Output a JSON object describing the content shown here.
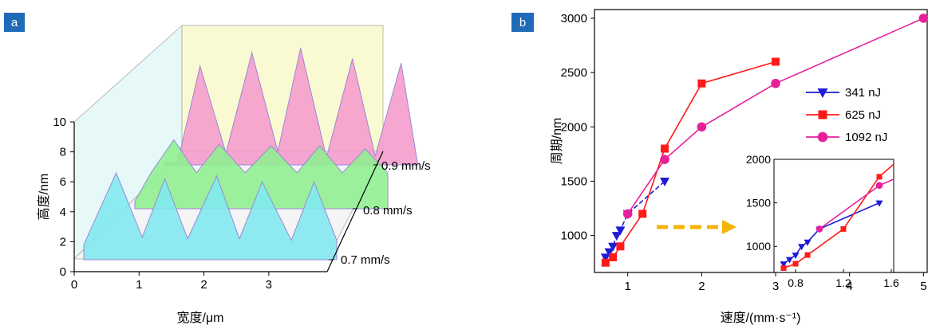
{
  "chart_data": [
    {
      "panel": "a",
      "type": "area",
      "xlabel": "宽度/μm",
      "ylabel": "高度/nm",
      "x_ticks": [
        "0",
        "1",
        "2",
        "3"
      ],
      "y_ticks": [
        "0",
        "2",
        "4",
        "6",
        "8",
        "10"
      ],
      "xlim": [
        0,
        3.9
      ],
      "ylim": [
        0,
        10
      ],
      "series": [
        {
          "name": "0.7 mm/s",
          "color": "#7fe8ef",
          "x": [
            0,
            0.5,
            0.9,
            1.25,
            1.6,
            2.05,
            2.4,
            2.75,
            3.2,
            3.55,
            3.9
          ],
          "values": [
            1,
            5.8,
            1.5,
            5.4,
            1.4,
            5.6,
            1.4,
            5.2,
            1.3,
            5.2,
            1.3
          ]
        },
        {
          "name": "0.8 mm/s",
          "color": "#8ef08e",
          "x": [
            0,
            0.25,
            0.6,
            0.95,
            1.3,
            1.7,
            2.1,
            2.5,
            2.85,
            3.2,
            3.55,
            3.9
          ],
          "values": [
            0.5,
            2.4,
            4.6,
            2.4,
            4.3,
            2.4,
            4.2,
            2.4,
            4.2,
            2.4,
            4.0,
            2.4
          ]
        },
        {
          "name": "0.9 mm/s",
          "color": "#f49bcc",
          "x": [
            0,
            0.2,
            0.55,
            0.95,
            1.35,
            1.75,
            2.1,
            2.5,
            2.9,
            3.25,
            3.65,
            3.9
          ],
          "values": [
            0.2,
            0.1,
            6.6,
            0.8,
            7.5,
            0.9,
            7.8,
            0.5,
            7.1,
            0.6,
            6.8,
            0.2
          ]
        }
      ]
    },
    {
      "panel": "b",
      "type": "line",
      "xlabel": "速度/(mm·s⁻¹)",
      "ylabel": "周期/nm",
      "x_ticks": [
        "1",
        "2",
        "3",
        "4",
        "5"
      ],
      "y_ticks": [
        "1000",
        "1500",
        "2000",
        "2500",
        "3000"
      ],
      "xlim": [
        0.55,
        5.05
      ],
      "ylim": [
        660,
        3080
      ],
      "legend_position": "right",
      "series": [
        {
          "name": "341 nJ",
          "color": "#1c1cd8",
          "marker": "triangle-down",
          "x": [
            0.7,
            0.75,
            0.8,
            0.85,
            0.9,
            1.0,
            1.5
          ],
          "values": [
            800,
            850,
            900,
            1000,
            1050,
            1200,
            1500
          ]
        },
        {
          "name": "625 nJ",
          "color": "#ff1a1a",
          "marker": "square",
          "x": [
            0.7,
            0.8,
            0.9,
            1.2,
            1.5,
            2.0,
            3.0
          ],
          "values": [
            750,
            800,
            900,
            1200,
            1800,
            2400,
            2600
          ]
        },
        {
          "name": "1092 nJ",
          "color": "#e6209a",
          "marker": "circle",
          "x": [
            1.0,
            1.5,
            2.0,
            3.0,
            5.0
          ],
          "values": [
            1200,
            1700,
            2000,
            2400,
            3000
          ]
        }
      ],
      "inset": {
        "x_ticks": [
          "0.8",
          "1.2",
          "1.6"
        ],
        "y_ticks": [
          "1000",
          "1500",
          "2000"
        ],
        "xlim": [
          0.62,
          1.62
        ],
        "ylim": [
          700,
          2000
        ]
      }
    }
  ],
  "panel_a_tag": "a",
  "panel_b_tag": "b"
}
